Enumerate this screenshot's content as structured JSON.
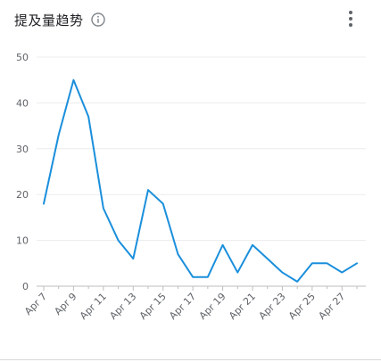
{
  "header": {
    "title": "提及量趋势",
    "info_icon": "info-icon",
    "more_icon": "more-vert-icon"
  },
  "colors": {
    "line": "#1a8fdc",
    "grid": "#ececec",
    "axis": "#bdbdbd",
    "text": "#5f6368"
  },
  "chart_data": {
    "type": "line",
    "title": "提及量趋势",
    "xlabel": "",
    "ylabel": "",
    "ylim": [
      0,
      50
    ],
    "yticks": [
      0,
      10,
      20,
      30,
      40,
      50
    ],
    "grid": true,
    "x": [
      "Apr 7",
      "Apr 8",
      "Apr 9",
      "Apr 10",
      "Apr 11",
      "Apr 12",
      "Apr 13",
      "Apr 14",
      "Apr 15",
      "Apr 16",
      "Apr 17",
      "Apr 18",
      "Apr 19",
      "Apr 20",
      "Apr 21",
      "Apr 22",
      "Apr 23",
      "Apr 24",
      "Apr 25",
      "Apr 26",
      "Apr 27",
      "Apr 28"
    ],
    "xtick_labels": [
      "Apr 7",
      "Apr 9",
      "Apr 11",
      "Apr 13",
      "Apr 15",
      "Apr 17",
      "Apr 19",
      "Apr 21",
      "Apr 23",
      "Apr 25",
      "Apr 27"
    ],
    "series": [
      {
        "values": [
          18,
          33,
          45,
          37,
          17,
          10,
          6,
          21,
          18,
          7,
          2,
          2,
          9,
          3,
          9,
          6,
          3,
          1,
          5,
          5,
          3,
          5
        ]
      }
    ]
  }
}
